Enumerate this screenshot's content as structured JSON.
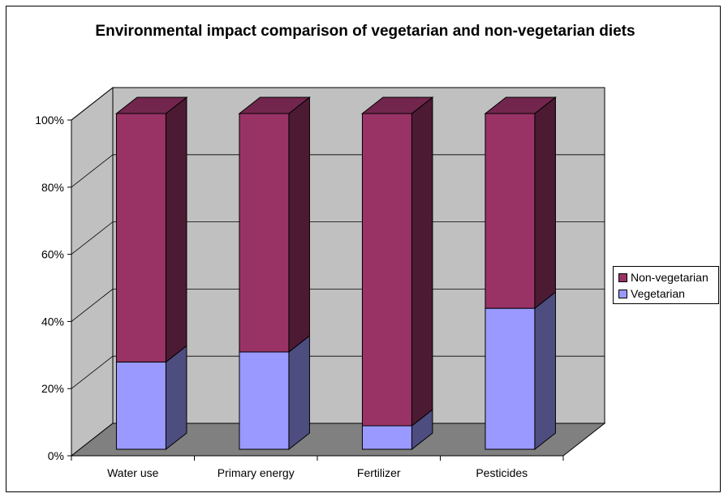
{
  "chart_data": {
    "type": "bar",
    "stacked": true,
    "percent_stacked": true,
    "three_d": true,
    "title": "Environmental impact comparison of vegetarian and non-vegetarian diets",
    "categories": [
      "Water use",
      "Primary energy",
      "Fertilizer",
      "Pesticides"
    ],
    "series": [
      {
        "name": "Vegetarian",
        "values": [
          26,
          29,
          7,
          42
        ],
        "color": "#9999ff"
      },
      {
        "name": "Non-vegetarian",
        "values": [
          74,
          71,
          93,
          58
        ],
        "color": "#993366"
      }
    ],
    "y_ticks": [
      "0%",
      "20%",
      "40%",
      "60%",
      "80%",
      "100%"
    ],
    "ylim": [
      0,
      100
    ],
    "grid": true,
    "legend_position": "right"
  },
  "legend": {
    "items": [
      {
        "label": "Non-vegetarian",
        "color": "#993366"
      },
      {
        "label": "Vegetarian",
        "color": "#9999ff"
      }
    ]
  },
  "colors": {
    "wall": "#c0c0c0",
    "floor": "#808080",
    "vegetarian_side": "#4d4d80",
    "vegetarian_top": "#7373bf",
    "nonveg_side": "#4d1a33",
    "nonveg_top": "#73264d"
  }
}
